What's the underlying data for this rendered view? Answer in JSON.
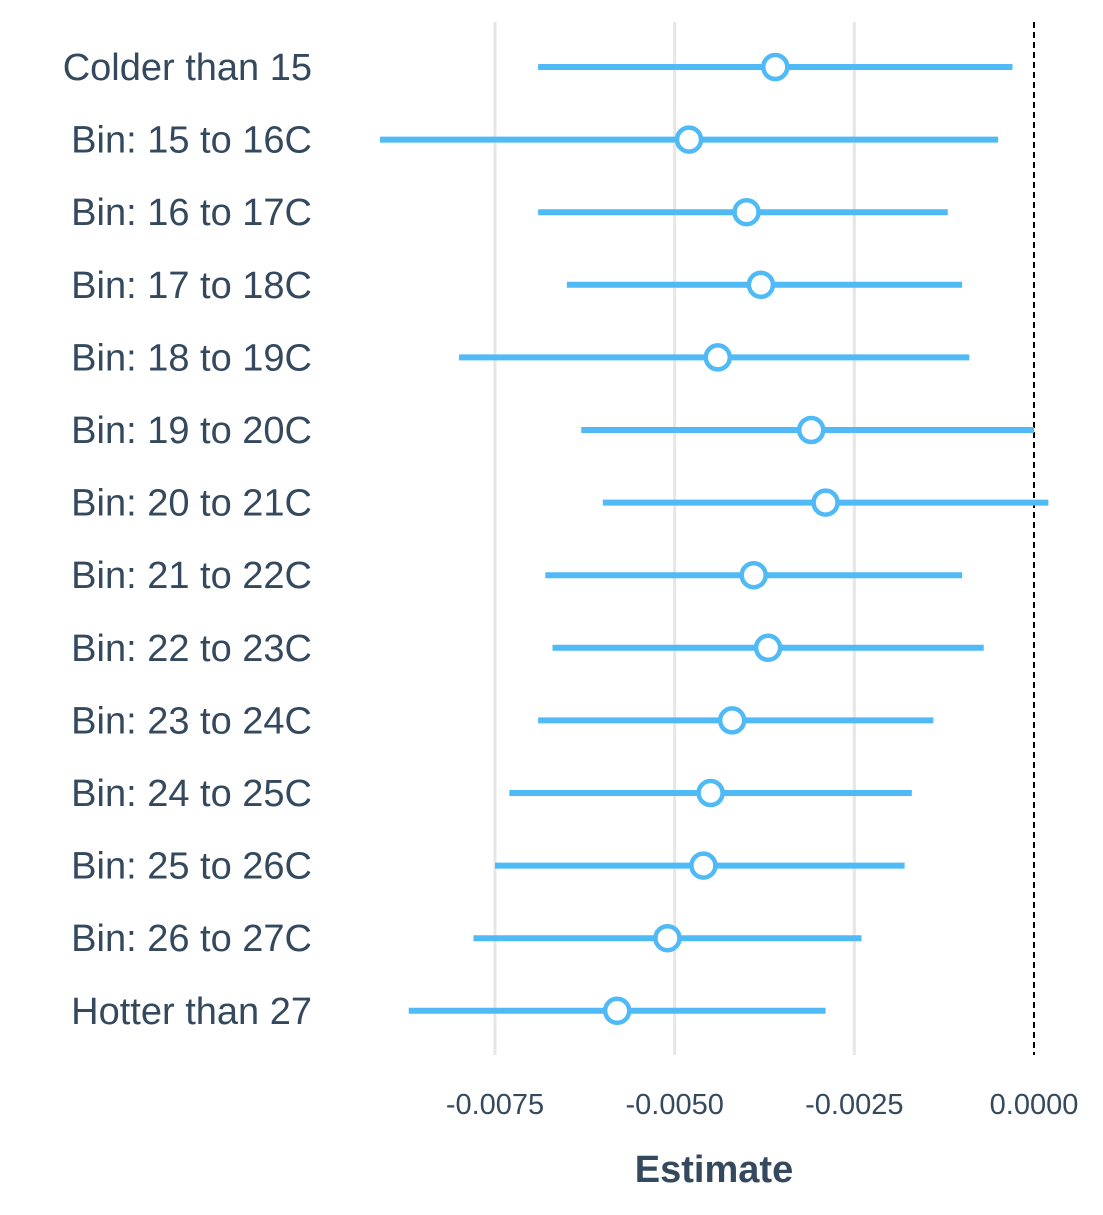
{
  "chart_data": {
    "type": "forest",
    "xlabel": "Estimate",
    "ylabel": "",
    "xlim": [
      -0.0088,
      0.0001
    ],
    "x_ticks": [
      -0.0075,
      -0.005,
      -0.0025,
      0.0
    ],
    "x_tick_labels": [
      "-0.0075",
      "-0.0050",
      "-0.0025",
      "0.0000"
    ],
    "reference_line": 0.0,
    "grid": "vertical",
    "legend": "none",
    "point_color": "#4fbaf5",
    "categories": [
      "Colder than 15",
      "Bin: 15 to 16C",
      "Bin: 16 to 17C",
      "Bin: 17 to 18C",
      "Bin: 18 to 19C",
      "Bin: 19 to 20C",
      "Bin: 20 to 21C",
      "Bin: 21 to 22C",
      "Bin: 22 to 23C",
      "Bin: 23 to 24C",
      "Bin: 24 to 25C",
      "Bin: 25 to 26C",
      "Bin: 26 to 27C",
      "Hotter than 27"
    ],
    "estimates": [
      -0.0036,
      -0.0048,
      -0.004,
      -0.0038,
      -0.0044,
      -0.0031,
      -0.0029,
      -0.0039,
      -0.0037,
      -0.0042,
      -0.0045,
      -0.0046,
      -0.0051,
      -0.0058
    ],
    "ci_low": [
      -0.0069,
      -0.0091,
      -0.0069,
      -0.0065,
      -0.008,
      -0.0063,
      -0.006,
      -0.0068,
      -0.0067,
      -0.0069,
      -0.0073,
      -0.0075,
      -0.0078,
      -0.0087
    ],
    "ci_high": [
      -0.0003,
      -0.0005,
      -0.0012,
      -0.001,
      -0.0009,
      0.0,
      0.0002,
      -0.001,
      -0.0007,
      -0.0014,
      -0.0017,
      -0.0018,
      -0.0024,
      -0.0029
    ]
  }
}
